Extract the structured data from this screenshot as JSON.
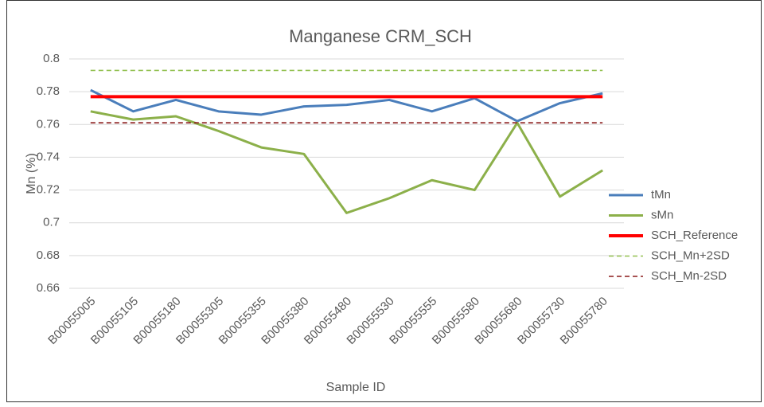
{
  "chart_data": {
    "type": "line",
    "title": "Manganese CRM_SCH",
    "x_label": "Sample ID",
    "y_label": "Mn (%)",
    "categories": [
      "B00055005",
      "B00055105",
      "B00055180",
      "B00055305",
      "B00055355",
      "B00055380",
      "B00055480",
      "B00055530",
      "B00055555",
      "B00055580",
      "B00055680",
      "B00055730",
      "B00055780"
    ],
    "ylim": [
      0.66,
      0.8
    ],
    "yticks": [
      0.66,
      0.68,
      0.7,
      0.72,
      0.74,
      0.76,
      0.78,
      0.8
    ],
    "grid": true,
    "legend": "right",
    "series": [
      {
        "name": "tMn",
        "color": "#4a7ebb",
        "style": "solid",
        "values": [
          0.781,
          0.768,
          0.775,
          0.768,
          0.766,
          0.771,
          0.772,
          0.775,
          0.768,
          0.776,
          0.762,
          0.773,
          0.779
        ]
      },
      {
        "name": "sMn",
        "color": "#8cb04a",
        "style": "solid",
        "values": [
          0.768,
          0.763,
          0.765,
          0.756,
          0.746,
          0.742,
          0.706,
          0.715,
          0.726,
          0.72,
          0.761,
          0.716,
          0.732
        ]
      },
      {
        "name": "SCH_Reference",
        "color": "#ff0000",
        "style": "bold",
        "values": [
          0.777,
          0.777,
          0.777,
          0.777,
          0.777,
          0.777,
          0.777,
          0.777,
          0.777,
          0.777,
          0.777,
          0.777,
          0.777
        ]
      },
      {
        "name": "SCH_Mn+2SD",
        "color": "#92c050",
        "style": "dashed",
        "values": [
          0.793,
          0.793,
          0.793,
          0.793,
          0.793,
          0.793,
          0.793,
          0.793,
          0.793,
          0.793,
          0.793,
          0.793,
          0.793
        ]
      },
      {
        "name": "SCH_Mn-2SD",
        "color": "#8b1a1a",
        "style": "dashed",
        "values": [
          0.761,
          0.761,
          0.761,
          0.761,
          0.761,
          0.761,
          0.761,
          0.761,
          0.761,
          0.761,
          0.761,
          0.761,
          0.761
        ]
      }
    ]
  }
}
